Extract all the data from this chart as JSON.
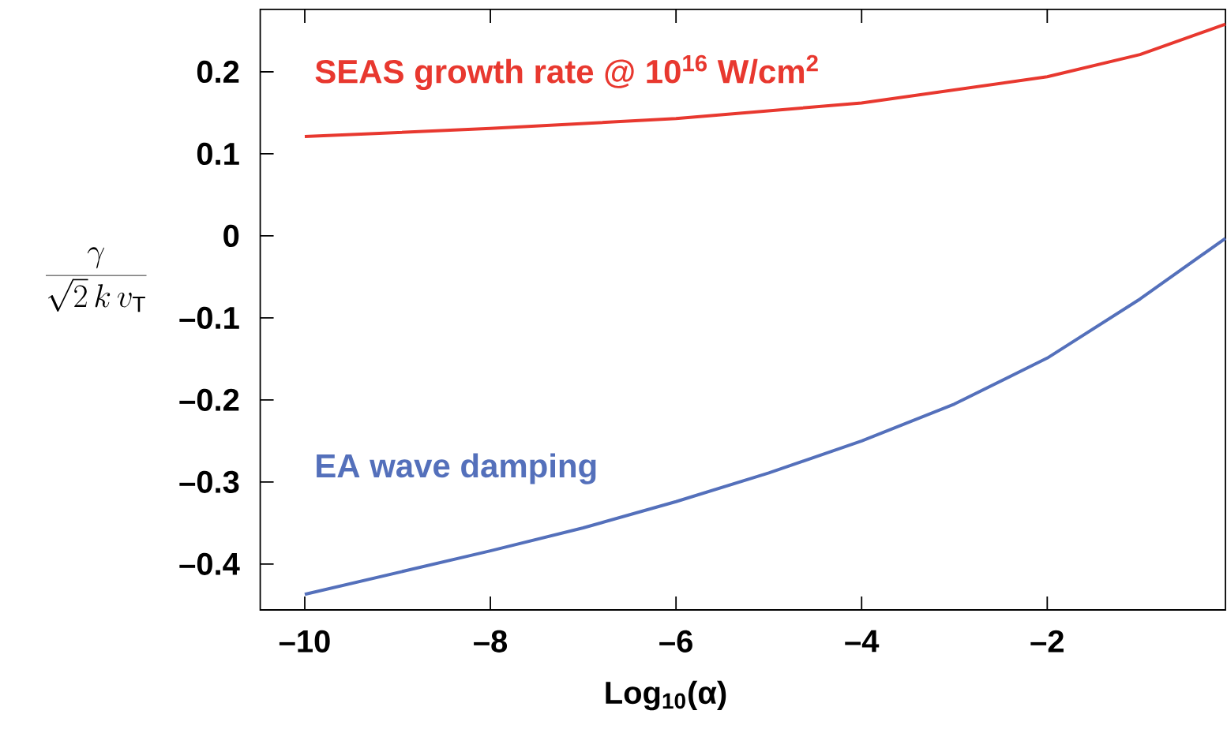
{
  "chart_data": {
    "type": "line",
    "xlabel": "Log$_{10}$(α)",
    "ylabel": "\\frac{\\gamma}{\\sqrt{2}\\,k\\,v_{\\mathrm{T}}}",
    "x": [
      -10,
      -8,
      -6,
      -4,
      -2,
      -1,
      -0.08
    ],
    "series": [
      {
        "name": "SEAS growth rate @ 10$^{16}$ W/cm$^{2}$",
        "color": "#e8382f",
        "values": [
          0.121,
          0.131,
          0.143,
          0.162,
          0.194,
          0.221,
          0.258
        ]
      },
      {
        "name": "EA wave damping",
        "color": "#5470bb",
        "x": [
          -10,
          -8,
          -7,
          -6,
          -5,
          -4,
          -3,
          -2,
          -1,
          -0.08
        ],
        "values": [
          -0.437,
          -0.384,
          -0.356,
          -0.324,
          -0.289,
          -0.25,
          -0.205,
          -0.149,
          -0.077,
          -0.003
        ]
      }
    ],
    "xlim": [
      -10.48,
      -0.08
    ],
    "ylim": [
      -0.456,
      0.276
    ],
    "xticks": [
      {
        "value": -10,
        "label": "–10"
      },
      {
        "value": -8,
        "label": "–8"
      },
      {
        "value": -6,
        "label": "–6"
      },
      {
        "value": -4,
        "label": "–4"
      },
      {
        "value": -2,
        "label": "–2"
      }
    ],
    "yticks": [
      {
        "value": -0.4,
        "label": "–0.4"
      },
      {
        "value": -0.3,
        "label": "–0.3"
      },
      {
        "value": -0.2,
        "label": "–0.2"
      },
      {
        "value": -0.1,
        "label": "–0.1"
      },
      0,
      0.1,
      0.2
    ],
    "grid": false,
    "legend": false,
    "marker": "none",
    "line_style": "solid"
  }
}
